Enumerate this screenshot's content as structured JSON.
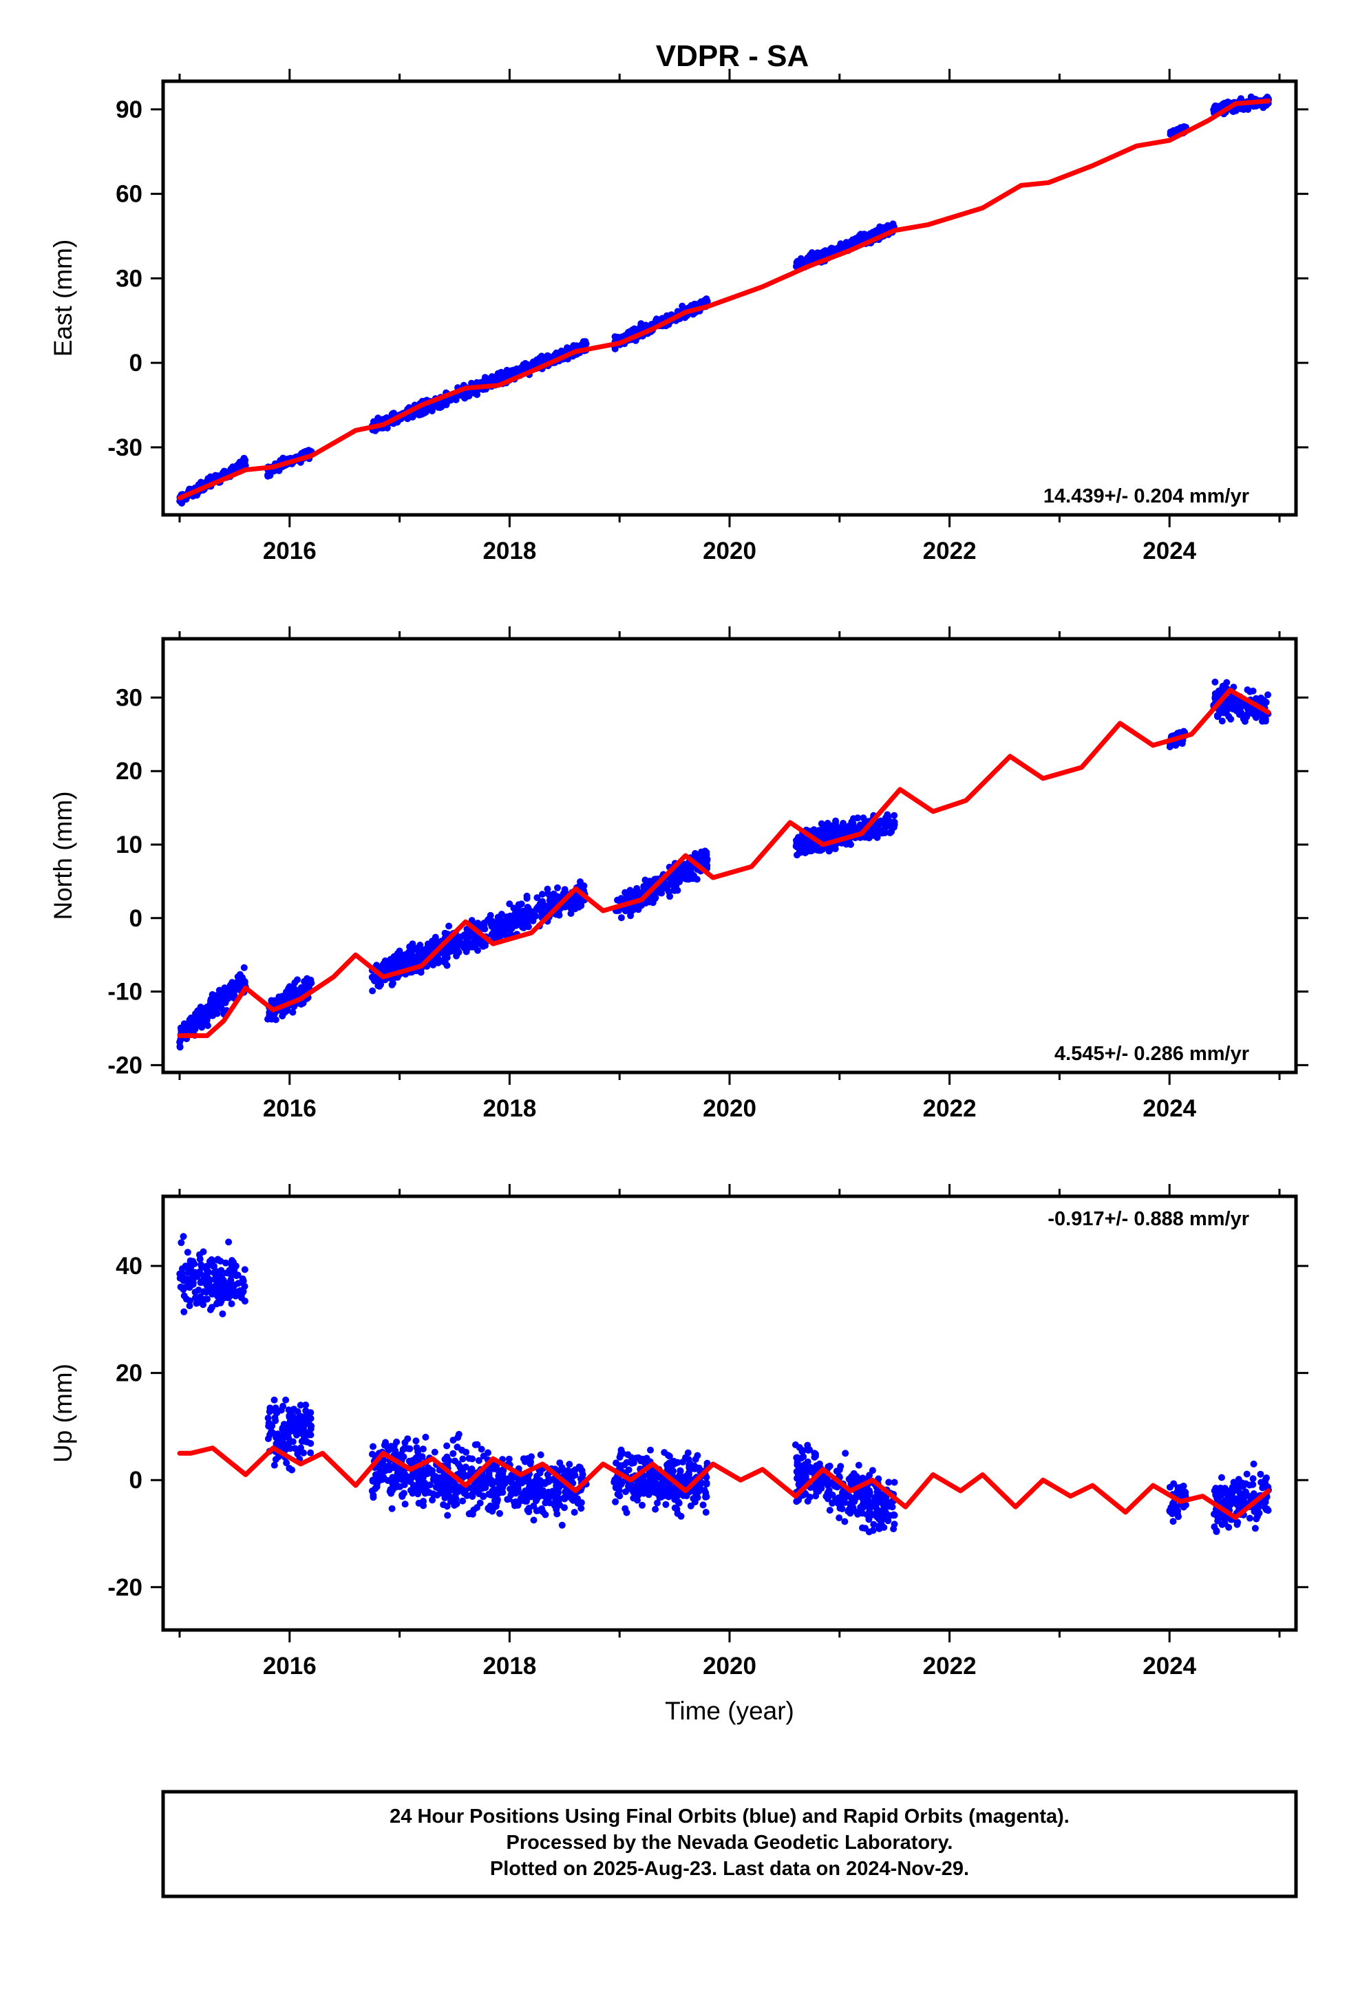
{
  "title": "VDPR - SA",
  "colors": {
    "points": "#0000ff",
    "model": "#ff0000",
    "frame": "#000000",
    "background": "#ffffff"
  },
  "chart_data": [
    {
      "type": "scatter",
      "ylabel": "East (mm)",
      "xlabel": "",
      "xlim": [
        2014.85,
        2025.15
      ],
      "ylim": [
        -54,
        100
      ],
      "xticks": [
        2016,
        2018,
        2020,
        2022,
        2024
      ],
      "yticks": [
        -30,
        0,
        30,
        60,
        90
      ],
      "rate_label": "14.439+/- 0.204 mm/yr",
      "rate_position": "bottom-right",
      "series": [
        {
          "kind": "daily positions (points)",
          "segments": [
            {
              "start": 2015.0,
              "end": 2015.6,
              "y_start": -48.5,
              "y_end": -35.5,
              "scatter": 1.6
            },
            {
              "start": 2015.8,
              "end": 2016.2,
              "y_start": -38.5,
              "y_end": -31.5,
              "scatter": 1.6
            },
            {
              "start": 2016.75,
              "end": 2018.7,
              "y_start": -23.0,
              "y_end": 6.0,
              "scatter": 2.0
            },
            {
              "start": 2018.95,
              "end": 2019.8,
              "y_start": 7.0,
              "y_end": 21.5,
              "scatter": 1.8
            },
            {
              "start": 2020.6,
              "end": 2021.5,
              "y_start": 34.5,
              "y_end": 48.0,
              "scatter": 1.8
            },
            {
              "start": 2024.0,
              "end": 2024.15,
              "y_start": 81.0,
              "y_end": 83.0,
              "scatter": 1.2
            },
            {
              "start": 2024.4,
              "end": 2024.9,
              "y_start": 90.0,
              "y_end": 93.0,
              "scatter": 1.6
            }
          ]
        },
        {
          "kind": "model fit (line)",
          "x": [
            2015.0,
            2015.3,
            2015.6,
            2015.85,
            2016.2,
            2016.6,
            2016.85,
            2017.2,
            2017.6,
            2017.9,
            2018.2,
            2018.6,
            2019.0,
            2019.3,
            2019.6,
            2019.8,
            2020.3,
            2020.7,
            2021.1,
            2021.5,
            2021.8,
            2022.3,
            2022.65,
            2022.9,
            2023.3,
            2023.7,
            2024.0,
            2024.35,
            2024.6,
            2024.9
          ],
          "y": [
            -48,
            -43,
            -38,
            -37,
            -33,
            -24,
            -22,
            -15,
            -9,
            -8,
            -3,
            4,
            7,
            12,
            18,
            20,
            27,
            34,
            40,
            47,
            49,
            55,
            63,
            64,
            70,
            77,
            79,
            86,
            92,
            93
          ]
        }
      ]
    },
    {
      "type": "scatter",
      "ylabel": "North (mm)",
      "xlabel": "",
      "xlim": [
        2014.85,
        2025.15
      ],
      "ylim": [
        -21,
        38
      ],
      "xticks": [
        2016,
        2018,
        2020,
        2022,
        2024
      ],
      "yticks": [
        -20,
        -10,
        0,
        10,
        20,
        30
      ],
      "rate_label": "4.545+/- 0.286 mm/yr",
      "rate_position": "bottom-right",
      "series": [
        {
          "kind": "daily positions (points)",
          "segments": [
            {
              "start": 2015.0,
              "end": 2015.6,
              "y_start": -16.0,
              "y_end": -8.5,
              "scatter": 1.6
            },
            {
              "start": 2015.8,
              "end": 2016.2,
              "y_start": -13.0,
              "y_end": -9.0,
              "scatter": 1.8
            },
            {
              "start": 2016.75,
              "end": 2018.7,
              "y_start": -8.0,
              "y_end": 3.5,
              "scatter": 1.8
            },
            {
              "start": 2018.95,
              "end": 2019.8,
              "y_start": 1.0,
              "y_end": 8.0,
              "scatter": 1.6
            },
            {
              "start": 2020.6,
              "end": 2021.5,
              "y_start": 10.0,
              "y_end": 13.0,
              "scatter": 1.6
            },
            {
              "start": 2024.0,
              "end": 2024.15,
              "y_start": 24.0,
              "y_end": 25.0,
              "scatter": 1.0
            },
            {
              "start": 2024.4,
              "end": 2024.9,
              "y_start": 30.0,
              "y_end": 28.0,
              "scatter": 2.0
            }
          ]
        },
        {
          "kind": "model fit (line)",
          "x": [
            2015.0,
            2015.25,
            2015.4,
            2015.6,
            2015.85,
            2016.1,
            2016.4,
            2016.6,
            2016.85,
            2017.2,
            2017.6,
            2017.85,
            2018.2,
            2018.6,
            2018.85,
            2019.2,
            2019.6,
            2019.85,
            2020.2,
            2020.55,
            2020.85,
            2021.2,
            2021.55,
            2021.85,
            2022.15,
            2022.55,
            2022.85,
            2023.2,
            2023.55,
            2023.85,
            2024.2,
            2024.55,
            2024.9
          ],
          "y": [
            -16,
            -16,
            -14,
            -9.5,
            -12.5,
            -11,
            -8,
            -5,
            -8,
            -6.5,
            -0.5,
            -3.5,
            -2,
            4,
            1,
            2.5,
            8.5,
            5.5,
            7,
            13,
            10,
            11.5,
            17.5,
            14.5,
            16,
            22,
            19,
            20.5,
            26.5,
            23.5,
            25,
            31,
            28
          ]
        }
      ]
    },
    {
      "type": "scatter",
      "ylabel": "Up (mm)",
      "xlabel": "Time (year)",
      "xlim": [
        2014.85,
        2025.15
      ],
      "ylim": [
        -28,
        53
      ],
      "xticks": [
        2016,
        2018,
        2020,
        2022,
        2024
      ],
      "yticks": [
        -20,
        0,
        20,
        40
      ],
      "rate_label": "-0.917+/- 0.888 mm/yr",
      "rate_position": "top-right",
      "series": [
        {
          "kind": "daily positions (points)",
          "segments": [
            {
              "start": 2015.0,
              "end": 2015.6,
              "y_start": 38.0,
              "y_end": 36.0,
              "scatter": 5.0
            },
            {
              "start": 2015.8,
              "end": 2016.2,
              "y_start": 8.0,
              "y_end": 10.0,
              "scatter": 5.5
            },
            {
              "start": 2016.75,
              "end": 2018.7,
              "y_start": 2.0,
              "y_end": -2.0,
              "scatter": 5.5
            },
            {
              "start": 2018.95,
              "end": 2019.8,
              "y_start": 1.0,
              "y_end": -1.0,
              "scatter": 5.0
            },
            {
              "start": 2020.6,
              "end": 2021.5,
              "y_start": 2.0,
              "y_end": -6.0,
              "scatter": 5.0
            },
            {
              "start": 2024.0,
              "end": 2024.15,
              "y_start": -4.0,
              "y_end": -3.0,
              "scatter": 3.0
            },
            {
              "start": 2024.4,
              "end": 2024.9,
              "y_start": -6.0,
              "y_end": -2.0,
              "scatter": 5.0
            }
          ]
        },
        {
          "kind": "model fit (line)",
          "x": [
            2015.0,
            2015.1,
            2015.3,
            2015.6,
            2015.85,
            2016.1,
            2016.3,
            2016.6,
            2016.85,
            2017.1,
            2017.3,
            2017.6,
            2017.85,
            2018.1,
            2018.3,
            2018.6,
            2018.85,
            2019.1,
            2019.3,
            2019.6,
            2019.85,
            2020.1,
            2020.3,
            2020.6,
            2020.85,
            2021.1,
            2021.3,
            2021.6,
            2021.85,
            2022.1,
            2022.3,
            2022.6,
            2022.85,
            2023.1,
            2023.3,
            2023.6,
            2023.85,
            2024.1,
            2024.3,
            2024.6,
            2024.9
          ],
          "y": [
            5,
            5,
            6,
            1,
            6,
            3,
            5,
            -1,
            5,
            2,
            4,
            -1,
            4,
            1,
            3,
            -2,
            3,
            0,
            3,
            -2,
            3,
            0,
            2,
            -3,
            2,
            -2,
            0,
            -5,
            1,
            -2,
            1,
            -5,
            0,
            -3,
            -1,
            -6,
            -1,
            -4,
            -3,
            -7,
            -2
          ]
        }
      ]
    }
  ],
  "footer": {
    "line1": "24 Hour Positions Using Final Orbits (blue) and Rapid Orbits (magenta).",
    "line2": "Processed by the Nevada Geodetic Laboratory.",
    "line3": "Plotted on 2025-Aug-23. Last data on 2024-Nov-29."
  }
}
